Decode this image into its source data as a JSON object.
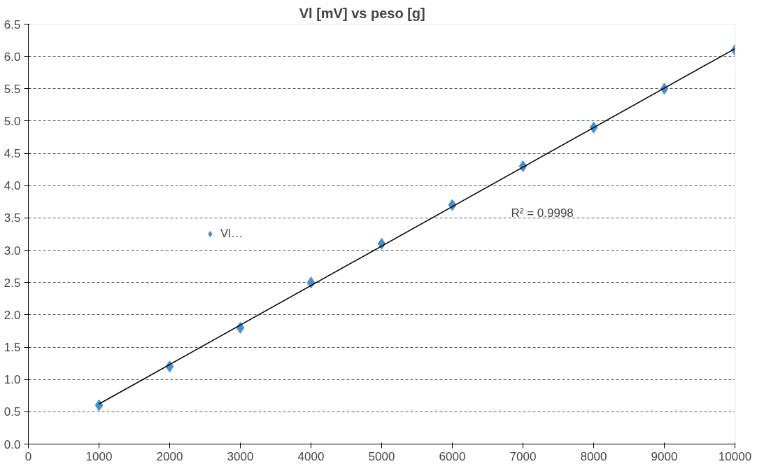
{
  "chart_data": {
    "type": "scatter",
    "title": "Vl [mV]      vs      peso [g]",
    "x": [
      1000,
      2000,
      3000,
      4000,
      5000,
      6000,
      7000,
      8000,
      9000,
      10000
    ],
    "series": [
      {
        "name": "Vl…",
        "color": "#4a90c8",
        "marker": "diamond",
        "values": [
          0.6,
          1.2,
          1.8,
          2.5,
          3.1,
          3.7,
          4.3,
          4.9,
          5.5,
          6.1
        ]
      },
      {
        "type": "line",
        "color": "#000000",
        "marker": "none",
        "x": [
          1000,
          10000
        ],
        "values": [
          0.62,
          6.12
        ]
      }
    ],
    "xlim": [
      0,
      10000
    ],
    "ylim": [
      0,
      6.5
    ],
    "xticks": [
      0,
      1000,
      2000,
      3000,
      4000,
      5000,
      6000,
      7000,
      8000,
      9000,
      10000
    ],
    "yticks": [
      {
        "value": 0,
        "label": "0.0"
      },
      0.5,
      {
        "value": 1,
        "label": "1.0"
      },
      1.5,
      {
        "value": 2,
        "label": "2.0"
      },
      2.5,
      {
        "value": 3,
        "label": "3.0"
      },
      3.5,
      {
        "value": 4,
        "label": "4.0"
      },
      4.5,
      {
        "value": 5,
        "label": "5.0"
      },
      5.5,
      {
        "value": 6,
        "label": "6.0"
      },
      6.5
    ],
    "grid": "y",
    "legend": "left",
    "line_style": "solid",
    "annotations": [
      "R² = 0.9998"
    ]
  }
}
